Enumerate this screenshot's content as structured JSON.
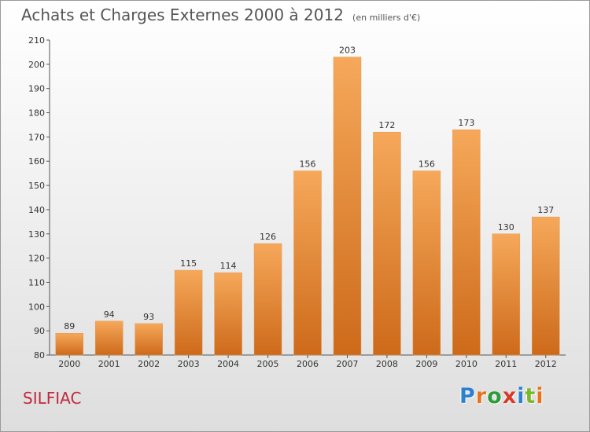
{
  "colors": {
    "bar_light": "#f6a85a",
    "bar_dark": "#cd6a1a",
    "commune": "#c0283c",
    "axis": "#555555"
  },
  "header": {
    "title": "Achats et Charges Externes 2000 à 2012",
    "subtitle": "(en milliers d'€)"
  },
  "commune": "SILFIAC",
  "logo": {
    "text": "Proxiti",
    "letters": [
      {
        "char": "P",
        "color": "#2f7fcf"
      },
      {
        "char": "r",
        "color": "#e8731e"
      },
      {
        "char": "o",
        "color": "#2f9a3a"
      },
      {
        "char": "x",
        "color": "#d83a2a"
      },
      {
        "char": "i",
        "color": "#2f7fcf"
      },
      {
        "char": "t",
        "color": "#7bb82a"
      },
      {
        "char": "i",
        "color": "#e8731e"
      }
    ]
  },
  "chart_data": {
    "type": "bar",
    "title": "Achats et Charges Externes 2000 à 2012",
    "subtitle": "(en milliers d'€)",
    "categories": [
      "2000",
      "2001",
      "2002",
      "2003",
      "2004",
      "2005",
      "2006",
      "2007",
      "2008",
      "2009",
      "2010",
      "2011",
      "2012"
    ],
    "values": [
      89,
      94,
      93,
      115,
      114,
      126,
      156,
      203,
      172,
      156,
      173,
      130,
      137
    ],
    "ylim": [
      80,
      210
    ],
    "yticks": [
      80,
      90,
      100,
      110,
      120,
      130,
      140,
      150,
      160,
      170,
      180,
      190,
      200,
      210
    ],
    "xlabel": "",
    "ylabel": "",
    "grid": false,
    "data_labels": true
  }
}
